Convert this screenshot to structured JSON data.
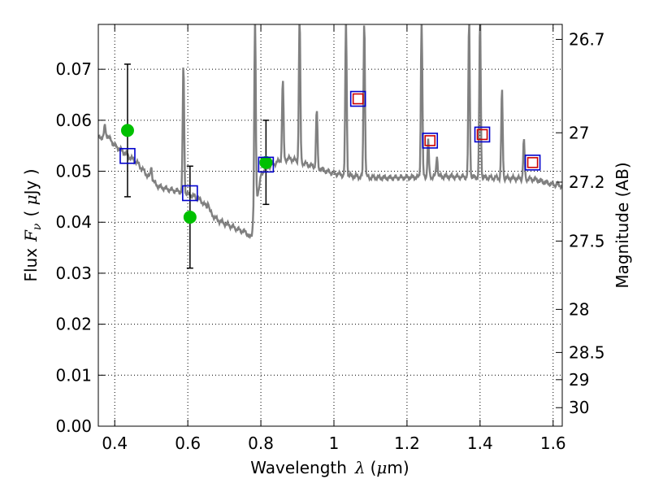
{
  "chart_data": {
    "type": "scatter",
    "title": "",
    "xlabel": {
      "text": "Wavelength",
      "symbol": "λ",
      "unit": "(",
      "unit_sym": "μ",
      "unit_rest": "m)"
    },
    "ylabel": {
      "text": "Flux",
      "symbol": "F",
      "sub": "ν",
      "unit": "( ",
      "unit_sym": "μ",
      "unit_rest": "Jy )"
    },
    "y2label": "Magnitude (AB)",
    "xlim": [
      0.355,
      1.625
    ],
    "ylim": [
      0.0,
      0.0788
    ],
    "grid": true,
    "x_ticks": [
      {
        "value": 0.4,
        "label": "0.4"
      },
      {
        "value": 0.6,
        "label": "0.6"
      },
      {
        "value": 0.8,
        "label": "0.8"
      },
      {
        "value": 1.0,
        "label": "1"
      },
      {
        "value": 1.2,
        "label": "1.2"
      },
      {
        "value": 1.4,
        "label": "1.4"
      },
      {
        "value": 1.6,
        "label": "1.6"
      }
    ],
    "y_ticks": [
      {
        "value": 0.0,
        "label": "0.00"
      },
      {
        "value": 0.01,
        "label": "0.01"
      },
      {
        "value": 0.02,
        "label": "0.02"
      },
      {
        "value": 0.03,
        "label": "0.03"
      },
      {
        "value": 0.04,
        "label": "0.04"
      },
      {
        "value": 0.05,
        "label": "0.05"
      },
      {
        "value": 0.06,
        "label": "0.06"
      },
      {
        "value": 0.07,
        "label": "0.07"
      }
    ],
    "y2_ticks": [
      {
        "value": 26.7,
        "label": "26.7"
      },
      {
        "value": 27.0,
        "label": "27"
      },
      {
        "value": 27.2,
        "label": "27.2"
      },
      {
        "value": 27.5,
        "label": "27.5"
      },
      {
        "value": 28.0,
        "label": "28"
      },
      {
        "value": 28.5,
        "label": "28.5"
      },
      {
        "value": 29.0,
        "label": "29"
      },
      {
        "value": 30.0,
        "label": "30"
      }
    ],
    "series": [
      {
        "kind": "spectrum",
        "color": "#808080",
        "continuum": [
          [
            0.355,
            0.0565
          ],
          [
            0.38,
            0.057
          ],
          [
            0.4,
            0.055
          ],
          [
            0.42,
            0.054
          ],
          [
            0.44,
            0.0528
          ],
          [
            0.46,
            0.0518
          ],
          [
            0.48,
            0.05
          ],
          [
            0.5,
            0.0483
          ],
          [
            0.52,
            0.047
          ],
          [
            0.55,
            0.0464
          ],
          [
            0.58,
            0.046
          ],
          [
            0.6,
            0.0455
          ],
          [
            0.62,
            0.045
          ],
          [
            0.64,
            0.044
          ],
          [
            0.66,
            0.042
          ],
          [
            0.68,
            0.0405
          ],
          [
            0.7,
            0.0398
          ],
          [
            0.72,
            0.0392
          ],
          [
            0.74,
            0.0385
          ],
          [
            0.76,
            0.038
          ],
          [
            0.77,
            0.037
          ],
          [
            0.775,
            0.0375
          ],
          [
            0.78,
            0.041
          ],
          [
            0.79,
            0.045
          ],
          [
            0.8,
            0.049
          ],
          [
            0.81,
            0.0505
          ],
          [
            0.83,
            0.0512
          ],
          [
            0.85,
            0.052
          ],
          [
            0.88,
            0.0525
          ],
          [
            0.9,
            0.052
          ],
          [
            0.92,
            0.0515
          ],
          [
            0.95,
            0.0508
          ],
          [
            0.98,
            0.05
          ],
          [
            1.0,
            0.0496
          ],
          [
            1.03,
            0.0492
          ],
          [
            1.06,
            0.049
          ],
          [
            1.1,
            0.0488
          ],
          [
            1.15,
            0.0487
          ],
          [
            1.2,
            0.0488
          ],
          [
            1.25,
            0.0489
          ],
          [
            1.3,
            0.049
          ],
          [
            1.35,
            0.0489
          ],
          [
            1.4,
            0.0488
          ],
          [
            1.45,
            0.0487
          ],
          [
            1.5,
            0.0486
          ],
          [
            1.55,
            0.0484
          ],
          [
            1.58,
            0.0478
          ],
          [
            1.6,
            0.0474
          ],
          [
            1.625,
            0.0472
          ]
        ],
        "emission_lines": [
          {
            "x": 0.373,
            "peak": 0.0588
          },
          {
            "x": 0.5,
            "peak": 0.051
          },
          {
            "x": 0.588,
            "peak": 0.071
          },
          {
            "x": 0.656,
            "peak": 0.044
          },
          {
            "x": 0.784,
            "peak": 0.08
          },
          {
            "x": 0.86,
            "peak": 0.068
          },
          {
            "x": 0.906,
            "peak": 0.08
          },
          {
            "x": 0.953,
            "peak": 0.062
          },
          {
            "x": 1.033,
            "peak": 0.08
          },
          {
            "x": 1.083,
            "peak": 0.08
          },
          {
            "x": 1.24,
            "peak": 0.08
          },
          {
            "x": 1.258,
            "peak": 0.056
          },
          {
            "x": 1.282,
            "peak": 0.053
          },
          {
            "x": 1.37,
            "peak": 0.08
          },
          {
            "x": 1.4,
            "peak": 0.08
          },
          {
            "x": 1.46,
            "peak": 0.066
          },
          {
            "x": 1.52,
            "peak": 0.056
          }
        ]
      },
      {
        "kind": "observed",
        "marker": "circle",
        "color": "#00c000",
        "points": [
          {
            "x": 0.435,
            "y": 0.058,
            "err_low": 0.045,
            "err_high": 0.071
          },
          {
            "x": 0.606,
            "y": 0.041,
            "err_low": 0.031,
            "err_high": 0.051
          },
          {
            "x": 0.814,
            "y": 0.0517,
            "err_low": 0.0435,
            "err_high": 0.06
          }
        ]
      },
      {
        "kind": "model_photometry",
        "marker": "square",
        "color": "#0000cc",
        "points": [
          {
            "x": 0.435,
            "y": 0.053
          },
          {
            "x": 0.606,
            "y": 0.0457
          },
          {
            "x": 0.814,
            "y": 0.0513
          },
          {
            "x": 1.066,
            "y": 0.0642
          },
          {
            "x": 1.263,
            "y": 0.056
          },
          {
            "x": 1.406,
            "y": 0.0572
          },
          {
            "x": 1.544,
            "y": 0.0517
          }
        ]
      },
      {
        "kind": "model_photometry_inner",
        "marker": "square",
        "color": "#cc0000",
        "points": [
          {
            "x": 1.066,
            "y": 0.0642
          },
          {
            "x": 1.263,
            "y": 0.056
          },
          {
            "x": 1.406,
            "y": 0.0572
          },
          {
            "x": 1.544,
            "y": 0.0517
          }
        ]
      }
    ]
  }
}
